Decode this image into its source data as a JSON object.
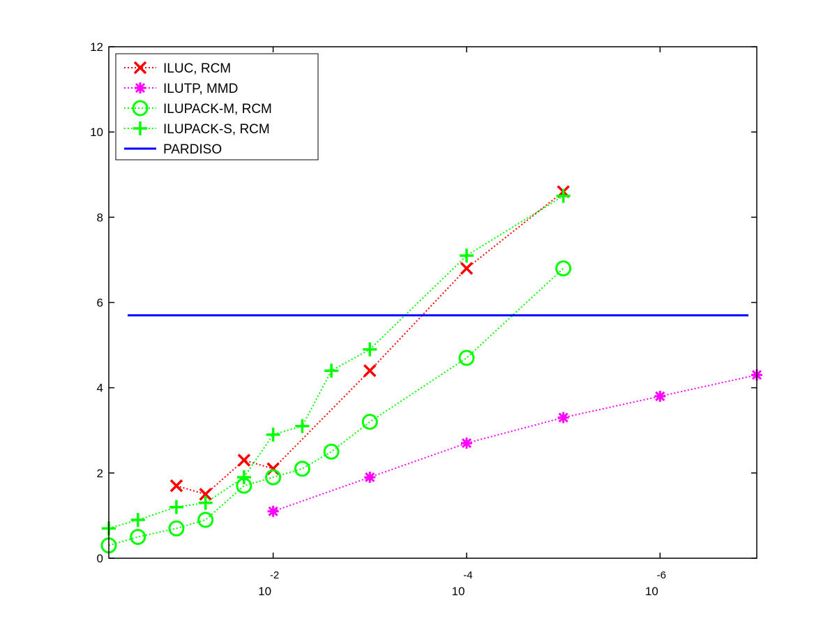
{
  "chart_data": {
    "type": "line",
    "x_scale": "log",
    "x_reversed": true,
    "xlim": [
      0.5,
      1e-07
    ],
    "ylim": [
      0,
      12
    ],
    "xticks": [
      {
        "value": 0.01,
        "base": "10",
        "exp": "-2"
      },
      {
        "value": 0.0001,
        "base": "10",
        "exp": "-4"
      },
      {
        "value": 1e-06,
        "base": "10",
        "exp": "-6"
      }
    ],
    "yticks": [
      0,
      2,
      4,
      6,
      8,
      10,
      12
    ],
    "yticklabels": [
      "0",
      "2",
      "4",
      "6",
      "8",
      "10",
      "12"
    ],
    "grid": false,
    "legend_position": "top-left",
    "series": [
      {
        "name": "ILUC, RCM",
        "color": "#ff0000",
        "marker": "x",
        "line": "dotted",
        "x": [
          0.1,
          0.05,
          0.02,
          0.01,
          0.001,
          0.0001,
          1e-05
        ],
        "y": [
          1.7,
          1.5,
          2.3,
          2.1,
          4.4,
          6.8,
          8.6
        ]
      },
      {
        "name": "ILUTP, MMD",
        "color": "#ff00ff",
        "marker": "asterisk",
        "line": "dotted",
        "x": [
          0.01,
          0.001,
          0.0001,
          1e-05,
          1e-06,
          1e-07
        ],
        "y": [
          1.1,
          1.9,
          2.7,
          3.3,
          3.8,
          4.3
        ]
      },
      {
        "name": "ILUPACK-M, RCM",
        "color": "#00ff00",
        "marker": "circle",
        "line": "dotted",
        "x": [
          0.5,
          0.25,
          0.1,
          0.05,
          0.02,
          0.01,
          0.005,
          0.0025,
          0.001,
          0.0001,
          1e-05
        ],
        "y": [
          0.3,
          0.5,
          0.7,
          0.9,
          1.7,
          1.9,
          2.1,
          2.5,
          3.2,
          4.7,
          6.8
        ]
      },
      {
        "name": "ILUPACK-S, RCM",
        "color": "#00ff00",
        "marker": "plus",
        "line": "dotted",
        "x": [
          0.5,
          0.25,
          0.1,
          0.05,
          0.02,
          0.01,
          0.005,
          0.0025,
          0.001,
          0.0001,
          1e-05
        ],
        "y": [
          0.7,
          0.9,
          1.2,
          1.3,
          1.9,
          2.9,
          3.1,
          4.4,
          4.9,
          7.1,
          8.5
        ]
      },
      {
        "name": "PARDISO",
        "color": "#0000ff",
        "marker": "none",
        "line": "solid",
        "constant": 5.7
      }
    ]
  }
}
